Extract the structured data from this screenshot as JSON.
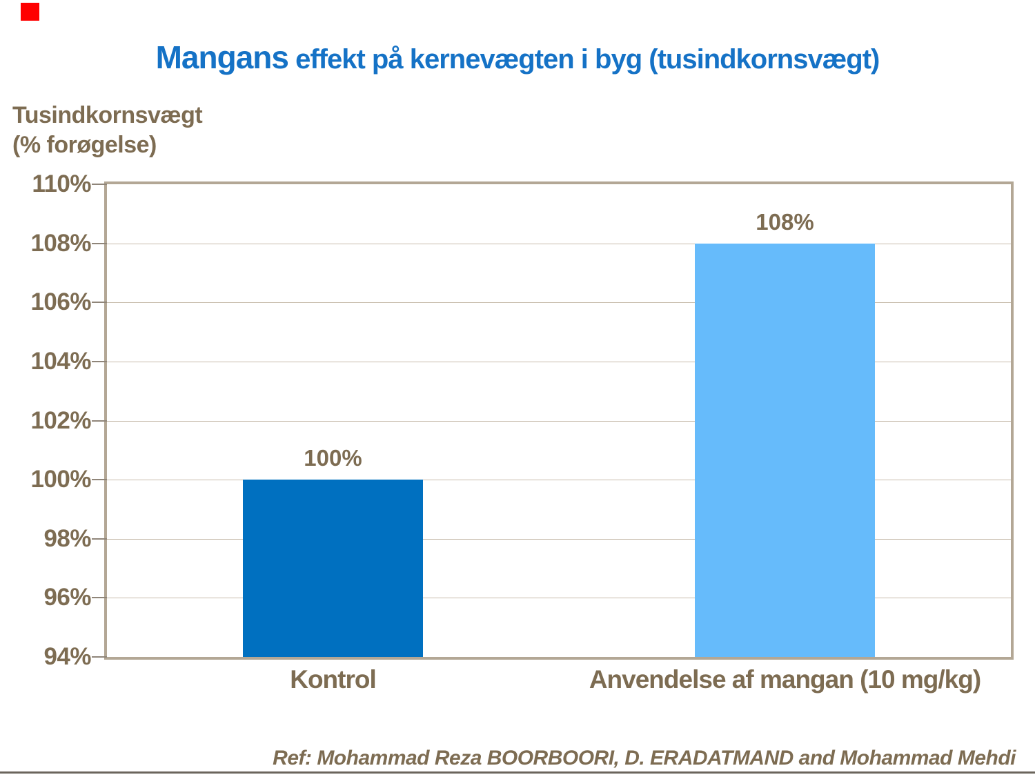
{
  "colors": {
    "background": "#FFFFFF",
    "title_blue": "#1572C6",
    "axis_brown": "#7D6C52",
    "bar_dark_blue": "#0070C0",
    "bar_light_blue": "#66BBFB",
    "plot_border": "#B3A795",
    "gridline": "#C6BAA9",
    "tick": "#8F8579",
    "footer_rule": "#6B655C",
    "marker_red": "#FE0000"
  },
  "title": {
    "part1": "Mangans",
    "part2": " effekt på kernevægten i byg (tusindkornsvægt)"
  },
  "chart_data": {
    "type": "bar",
    "title": "Mangans effekt på kernevægten i byg (tusindkornsvægt)",
    "ylabel_lines": [
      "Tusindkornsvægt",
      "(% forøgelse)"
    ],
    "xlabel": "",
    "categories": [
      "Kontrol",
      "Anvendelse af mangan (10 mg/kg)"
    ],
    "values": [
      100,
      108
    ],
    "data_labels": [
      "100%",
      "108%"
    ],
    "bar_colors": [
      "#0070C0",
      "#66BBFB"
    ],
    "ylim": [
      94,
      110
    ],
    "ytick_step": 2,
    "yticks": [
      "110%",
      "108%",
      "106%",
      "104%",
      "102%",
      "100%",
      "98%",
      "96%",
      "94%"
    ],
    "grid": true,
    "legend": "none"
  },
  "footer": {
    "ref": "Ref: Mohammad Reza BOORBOORI, D. ERADATMAND and Mohammad Mehdi"
  }
}
